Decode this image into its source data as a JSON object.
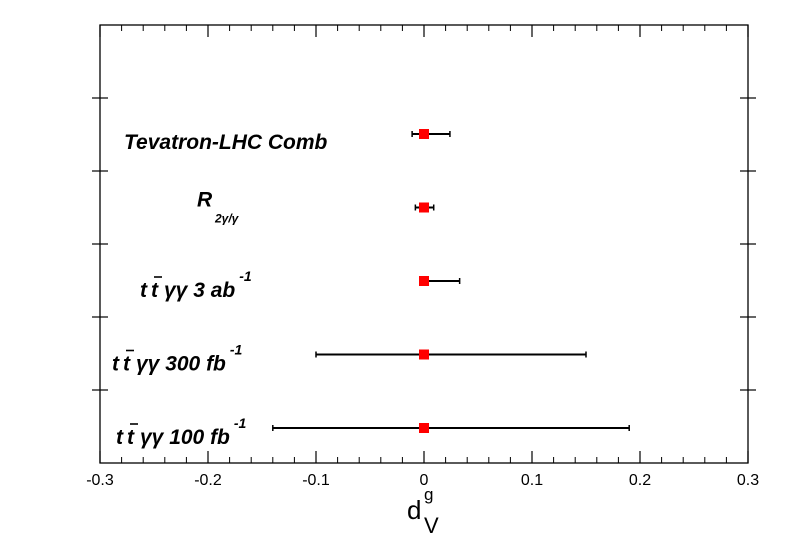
{
  "chart_data": {
    "type": "scatter",
    "subtype": "interval-plot",
    "xlabel": {
      "base": "d",
      "superscript": "g",
      "subscript": "V"
    },
    "xlim": [
      -0.3,
      0.3
    ],
    "xticks": [
      "-0.3",
      "-0.2",
      "-0.1",
      "0",
      "0.1",
      "0.2",
      "0.3"
    ],
    "x_tick_values": [
      -0.3,
      -0.2,
      -0.1,
      0,
      0.1,
      0.2,
      0.3
    ],
    "grid": false,
    "marker_color": "#ff0000",
    "errorbar_color": "#000000",
    "rows": [
      {
        "label": {
          "main": "Tevatron-LHC Comb",
          "sub": "",
          "sup": ""
        },
        "central": 0.0,
        "low": -0.011,
        "high": 0.024
      },
      {
        "label": {
          "main": "R",
          "sub": "2γ/γ",
          "sup": ""
        },
        "central": 0.0,
        "low": -0.008,
        "high": 0.009
      },
      {
        "label": {
          "prefix_top": "t",
          "prefix_bar": "t",
          "main": "γγ  3 ab",
          "sup": "-1"
        },
        "central": 0.0,
        "low": -0.003,
        "high": 0.033
      },
      {
        "label": {
          "prefix_top": "t",
          "prefix_bar": "t",
          "main": "γγ  300 fb",
          "sup": "-1"
        },
        "central": 0.0,
        "low": -0.1,
        "high": 0.15
      },
      {
        "label": {
          "prefix_top": "t",
          "prefix_bar": "t",
          "main": "γγ  100 fb",
          "sup": "-1"
        },
        "central": 0.0,
        "low": -0.14,
        "high": 0.19
      }
    ]
  }
}
